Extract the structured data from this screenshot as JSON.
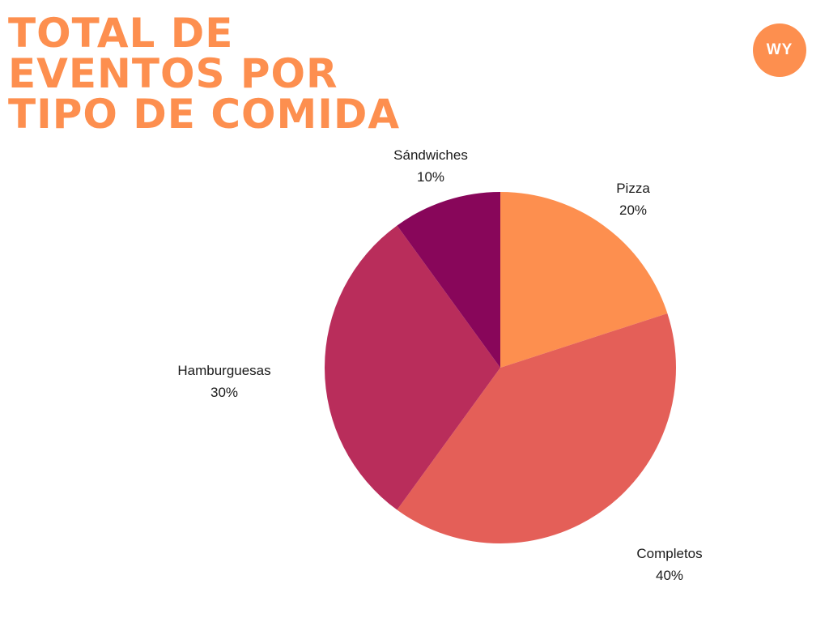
{
  "title_lines": [
    "TOTAL DE",
    "EVENTOS POR",
    "TIPO DE COMIDA"
  ],
  "badge": "WY",
  "chart_data": {
    "type": "pie",
    "title": "TOTAL DE EVENTOS POR TIPO DE COMIDA",
    "slices": [
      {
        "label": "Pizza",
        "value": 20,
        "value_label": "20%",
        "color": "#FD8F4F"
      },
      {
        "label": "Completos",
        "value": 40,
        "value_label": "40%",
        "color": "#E45F58"
      },
      {
        "label": "Hamburguesas",
        "value": 30,
        "value_label": "30%",
        "color": "#B92D5B"
      },
      {
        "label": "Sándwiches",
        "value": 10,
        "value_label": "10%",
        "color": "#88065A"
      }
    ],
    "start": "12 o'clock",
    "direction": "clockwise"
  }
}
